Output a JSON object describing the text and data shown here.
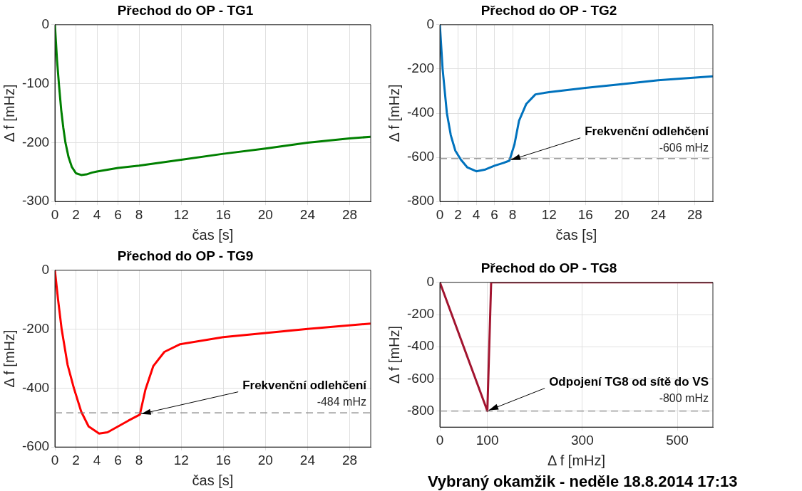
{
  "chart_data": [
    {
      "type": "line",
      "title": "Přechod do OP - TG1",
      "xlabel": "čas [s]",
      "ylabel": "Δ f [mHz]",
      "xlim": [
        0,
        30
      ],
      "xticks": [
        0,
        2,
        4,
        6,
        8,
        12,
        16,
        20,
        24,
        28
      ],
      "ylim": [
        -300,
        0
      ],
      "yticks": [
        -300,
        -200,
        -100,
        0
      ],
      "grid": true,
      "legend": false,
      "marker": "none",
      "line_style": "solid",
      "series": [
        {
          "color": "#008000",
          "x": [
            0,
            0.1,
            0.2,
            0.4,
            0.6,
            0.8,
            1.0,
            1.3,
            1.6,
            2.0,
            2.5,
            3,
            3.5,
            4,
            5,
            6,
            8,
            12,
            16,
            20,
            24,
            28,
            30
          ],
          "values": [
            0,
            -30,
            -60,
            -105,
            -145,
            -175,
            -200,
            -225,
            -241,
            -252,
            -255,
            -254,
            -251,
            -249,
            -246,
            -243,
            -239,
            -229,
            -219,
            -210,
            -200,
            -193,
            -190
          ]
        }
      ]
    },
    {
      "type": "line",
      "title": "Přechod do OP - TG2",
      "xlabel": "čas [s]",
      "ylabel": "Δ f [mHz]",
      "xlim": [
        0,
        30
      ],
      "xticks": [
        0,
        2,
        4,
        6,
        8,
        12,
        16,
        20,
        24,
        28
      ],
      "ylim": [
        -800,
        0
      ],
      "yticks": [
        -800,
        -600,
        -400,
        -200,
        0
      ],
      "grid": true,
      "legend": false,
      "marker": "none",
      "line_style": "solid",
      "series": [
        {
          "color": "#0072bd",
          "x": [
            0,
            0.3,
            0.77,
            1.2,
            1.7,
            2.3,
            3,
            4,
            5,
            6,
            7,
            7.64,
            8.2,
            8.7,
            9.5,
            10.5,
            12,
            16,
            20,
            24,
            30
          ],
          "values": [
            0,
            -200,
            -400,
            -500,
            -570,
            -610,
            -645,
            -663,
            -655,
            -638,
            -625,
            -615,
            -541,
            -434,
            -358,
            -315,
            -305,
            -286,
            -269,
            -251,
            -233
          ]
        }
      ],
      "ref_lines": [
        {
          "axis": "y",
          "value": -606,
          "label": "-606 mHz",
          "color": "#808080",
          "line_style": "dashed"
        }
      ],
      "annotations": [
        {
          "text": "Frekvenční odlehčení",
          "x": 7.64,
          "y": -615
        }
      ]
    },
    {
      "type": "line",
      "title": "Přechod do OP - TG9",
      "xlabel": "čas [s]",
      "ylabel": "Δ f [mHz]",
      "xlim": [
        0,
        30
      ],
      "xticks": [
        0,
        2,
        4,
        6,
        8,
        12,
        16,
        20,
        24,
        28
      ],
      "ylim": [
        -600,
        0
      ],
      "yticks": [
        -600,
        -400,
        -200,
        0
      ],
      "grid": true,
      "legend": false,
      "marker": "none",
      "line_style": "solid",
      "series": [
        {
          "color": "#ff0000",
          "x": [
            0,
            0.3,
            0.64,
            1.2,
            1.8,
            2.5,
            3.2,
            4.2,
            5,
            6,
            7,
            8.07,
            8.6,
            9.35,
            10.4,
            11.9,
            16,
            20,
            24,
            30
          ],
          "values": [
            0,
            -100,
            -200,
            -320,
            -400,
            -480,
            -530,
            -554,
            -550,
            -530,
            -510,
            -490,
            -405,
            -325,
            -277,
            -251,
            -227,
            -213,
            -199,
            -181
          ]
        }
      ],
      "ref_lines": [
        {
          "axis": "y",
          "value": -484,
          "label": "-484 mHz",
          "color": "#808080",
          "line_style": "dashed"
        }
      ],
      "annotations": [
        {
          "text": "Frekvenční odlehčení",
          "x": 8.07,
          "y": -490
        }
      ]
    },
    {
      "type": "line",
      "title": "Přechod do OP - TG8",
      "xlabel": "Δ f [mHz]",
      "ylabel": "Δ f [mHz]",
      "xlim": [
        0,
        575
      ],
      "xticks": [
        0,
        100,
        300,
        500
      ],
      "ylim": [
        -900,
        0
      ],
      "yticks": [
        -800,
        -600,
        -400,
        -200,
        0
      ],
      "grid": true,
      "legend": false,
      "marker": "none",
      "line_style": "solid",
      "series": [
        {
          "color": "#a2142f",
          "x": [
            0,
            100,
            108,
            575
          ],
          "values": [
            0,
            -800,
            0,
            0
          ]
        }
      ],
      "ref_lines": [
        {
          "axis": "y",
          "value": -800,
          "label": "-800 mHz",
          "color": "#808080",
          "line_style": "dashed"
        }
      ],
      "annotations": [
        {
          "text": "Odpojení TG8 od sítě do VS",
          "x": 100,
          "y": -800
        },
        "Vybraný okamžik - neděle 18.8.2014 17:13"
      ]
    }
  ]
}
